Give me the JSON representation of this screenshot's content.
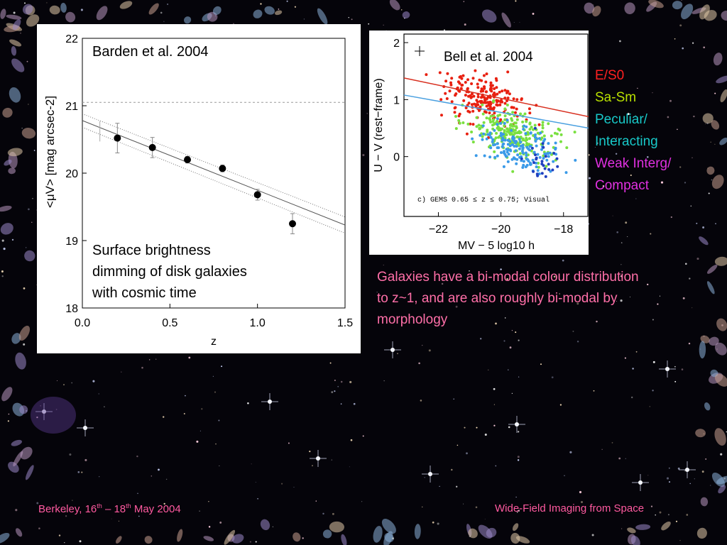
{
  "background": {
    "color": "#05040a",
    "theme": "deep-field-galaxies"
  },
  "left_chart": {
    "annotation_author": "Barden et al. 2004",
    "annotation_note_lines": [
      "Surface brightness",
      "dimming of disk galaxies",
      "with cosmic time"
    ],
    "ylabel": "<μV> [mag arcsec-2]",
    "xlabel": "z"
  },
  "right_chart": {
    "annotation_author": "Bell et al. 2004",
    "ylabel": "U − V (rest−frame)",
    "xlabel": "MV − 5 log10 h",
    "inner_note": "c) GEMS 0.65 ≤ z ≤ 0.75; Visual"
  },
  "legend": [
    {
      "label": "E/S0",
      "color": "#ff2020"
    },
    {
      "label": "Sa-Sm",
      "color": "#b8e000"
    },
    {
      "label": "Peculiar/",
      "color": "#18c8c8"
    },
    {
      "label": "Interacting",
      "color": "#18c8c8"
    },
    {
      "label": "Weak Interg/",
      "color": "#e030e0"
    },
    {
      "label": "Compact",
      "color": "#e030e0"
    }
  ],
  "caption": "Galaxies have a bi-modal colour distribution to z~1, and are also roughly bi-modal by morphology",
  "footer": {
    "left_a": "Berkeley, 16",
    "left_sup1": "th",
    "left_b": " – 18",
    "left_sup2": "th",
    "left_c": " May 2004",
    "right": "Wide-Field Imaging from Space"
  },
  "chart_data": [
    {
      "type": "scatter",
      "title": "Barden et al. 2004",
      "xlabel": "z",
      "ylabel": "<μV> [mag arcsec-2]",
      "xlim": [
        0.0,
        1.5
      ],
      "ylim": [
        18,
        22
      ],
      "y_inverted": true,
      "x_ticks": [
        "0.0",
        "0.5",
        "1.0",
        "1.5"
      ],
      "y_ticks": [
        "22",
        "21",
        "20",
        "19",
        "18"
      ],
      "points": [
        {
          "x": 0.2,
          "y": 20.52,
          "err": 0.22
        },
        {
          "x": 0.4,
          "y": 20.38,
          "err": 0.15
        },
        {
          "x": 0.6,
          "y": 20.2,
          "err": 0.05
        },
        {
          "x": 0.8,
          "y": 20.07,
          "err": 0.05
        },
        {
          "x": 1.0,
          "y": 19.68,
          "err": 0.08
        },
        {
          "x": 1.2,
          "y": 19.25,
          "err": 0.15
        }
      ],
      "grey_point": {
        "x": 0.1,
        "y": 20.62,
        "err": 0.15
      },
      "reference_line_y": 21.05,
      "fit_line": {
        "x": [
          0.0,
          1.5
        ],
        "y": [
          20.78,
          19.23
        ]
      },
      "fit_upper": {
        "x": [
          0.0,
          1.5
        ],
        "y": [
          20.88,
          19.35
        ]
      },
      "fit_lower": {
        "x": [
          0.0,
          1.5
        ],
        "y": [
          20.68,
          19.11
        ]
      }
    },
    {
      "type": "scatter",
      "title": "Bell et al. 2004",
      "xlabel": "MV − 5 log10 h",
      "ylabel": "U − V (rest−frame)",
      "xlim": [
        -23.1,
        -17.2
      ],
      "ylim": [
        -1.05,
        2.15
      ],
      "x_ticks": [
        "−22",
        "−20",
        "−18"
      ],
      "y_ticks": [
        "2",
        "1",
        "0"
      ],
      "red_sequence_line": {
        "x": [
          -23.1,
          -17.2
        ],
        "y": [
          1.38,
          0.7
        ]
      },
      "blue_line": {
        "x": [
          -23.1,
          -17.2
        ],
        "y": [
          1.08,
          0.5
        ]
      },
      "clouds": [
        {
          "name": "E/S0",
          "color": "#e82010",
          "n": 200,
          "cx": -20.6,
          "cy": 1.0,
          "sx": 1.1,
          "sy": 0.32
        },
        {
          "name": "Sa-Sm",
          "color": "#7ae040",
          "n": 230,
          "cx": -19.6,
          "cy": 0.4,
          "sx": 1.2,
          "sy": 0.35
        },
        {
          "name": "Peculiar/Interacting",
          "color": "#3a9ae8",
          "n": 150,
          "cx": -19.4,
          "cy": 0.15,
          "sx": 1.1,
          "sy": 0.3
        },
        {
          "name": "Weak Interg/Compact",
          "color": "#2040c0",
          "n": 25,
          "cx": -18.6,
          "cy": -0.1,
          "sx": 0.6,
          "sy": 0.25
        }
      ]
    }
  ]
}
